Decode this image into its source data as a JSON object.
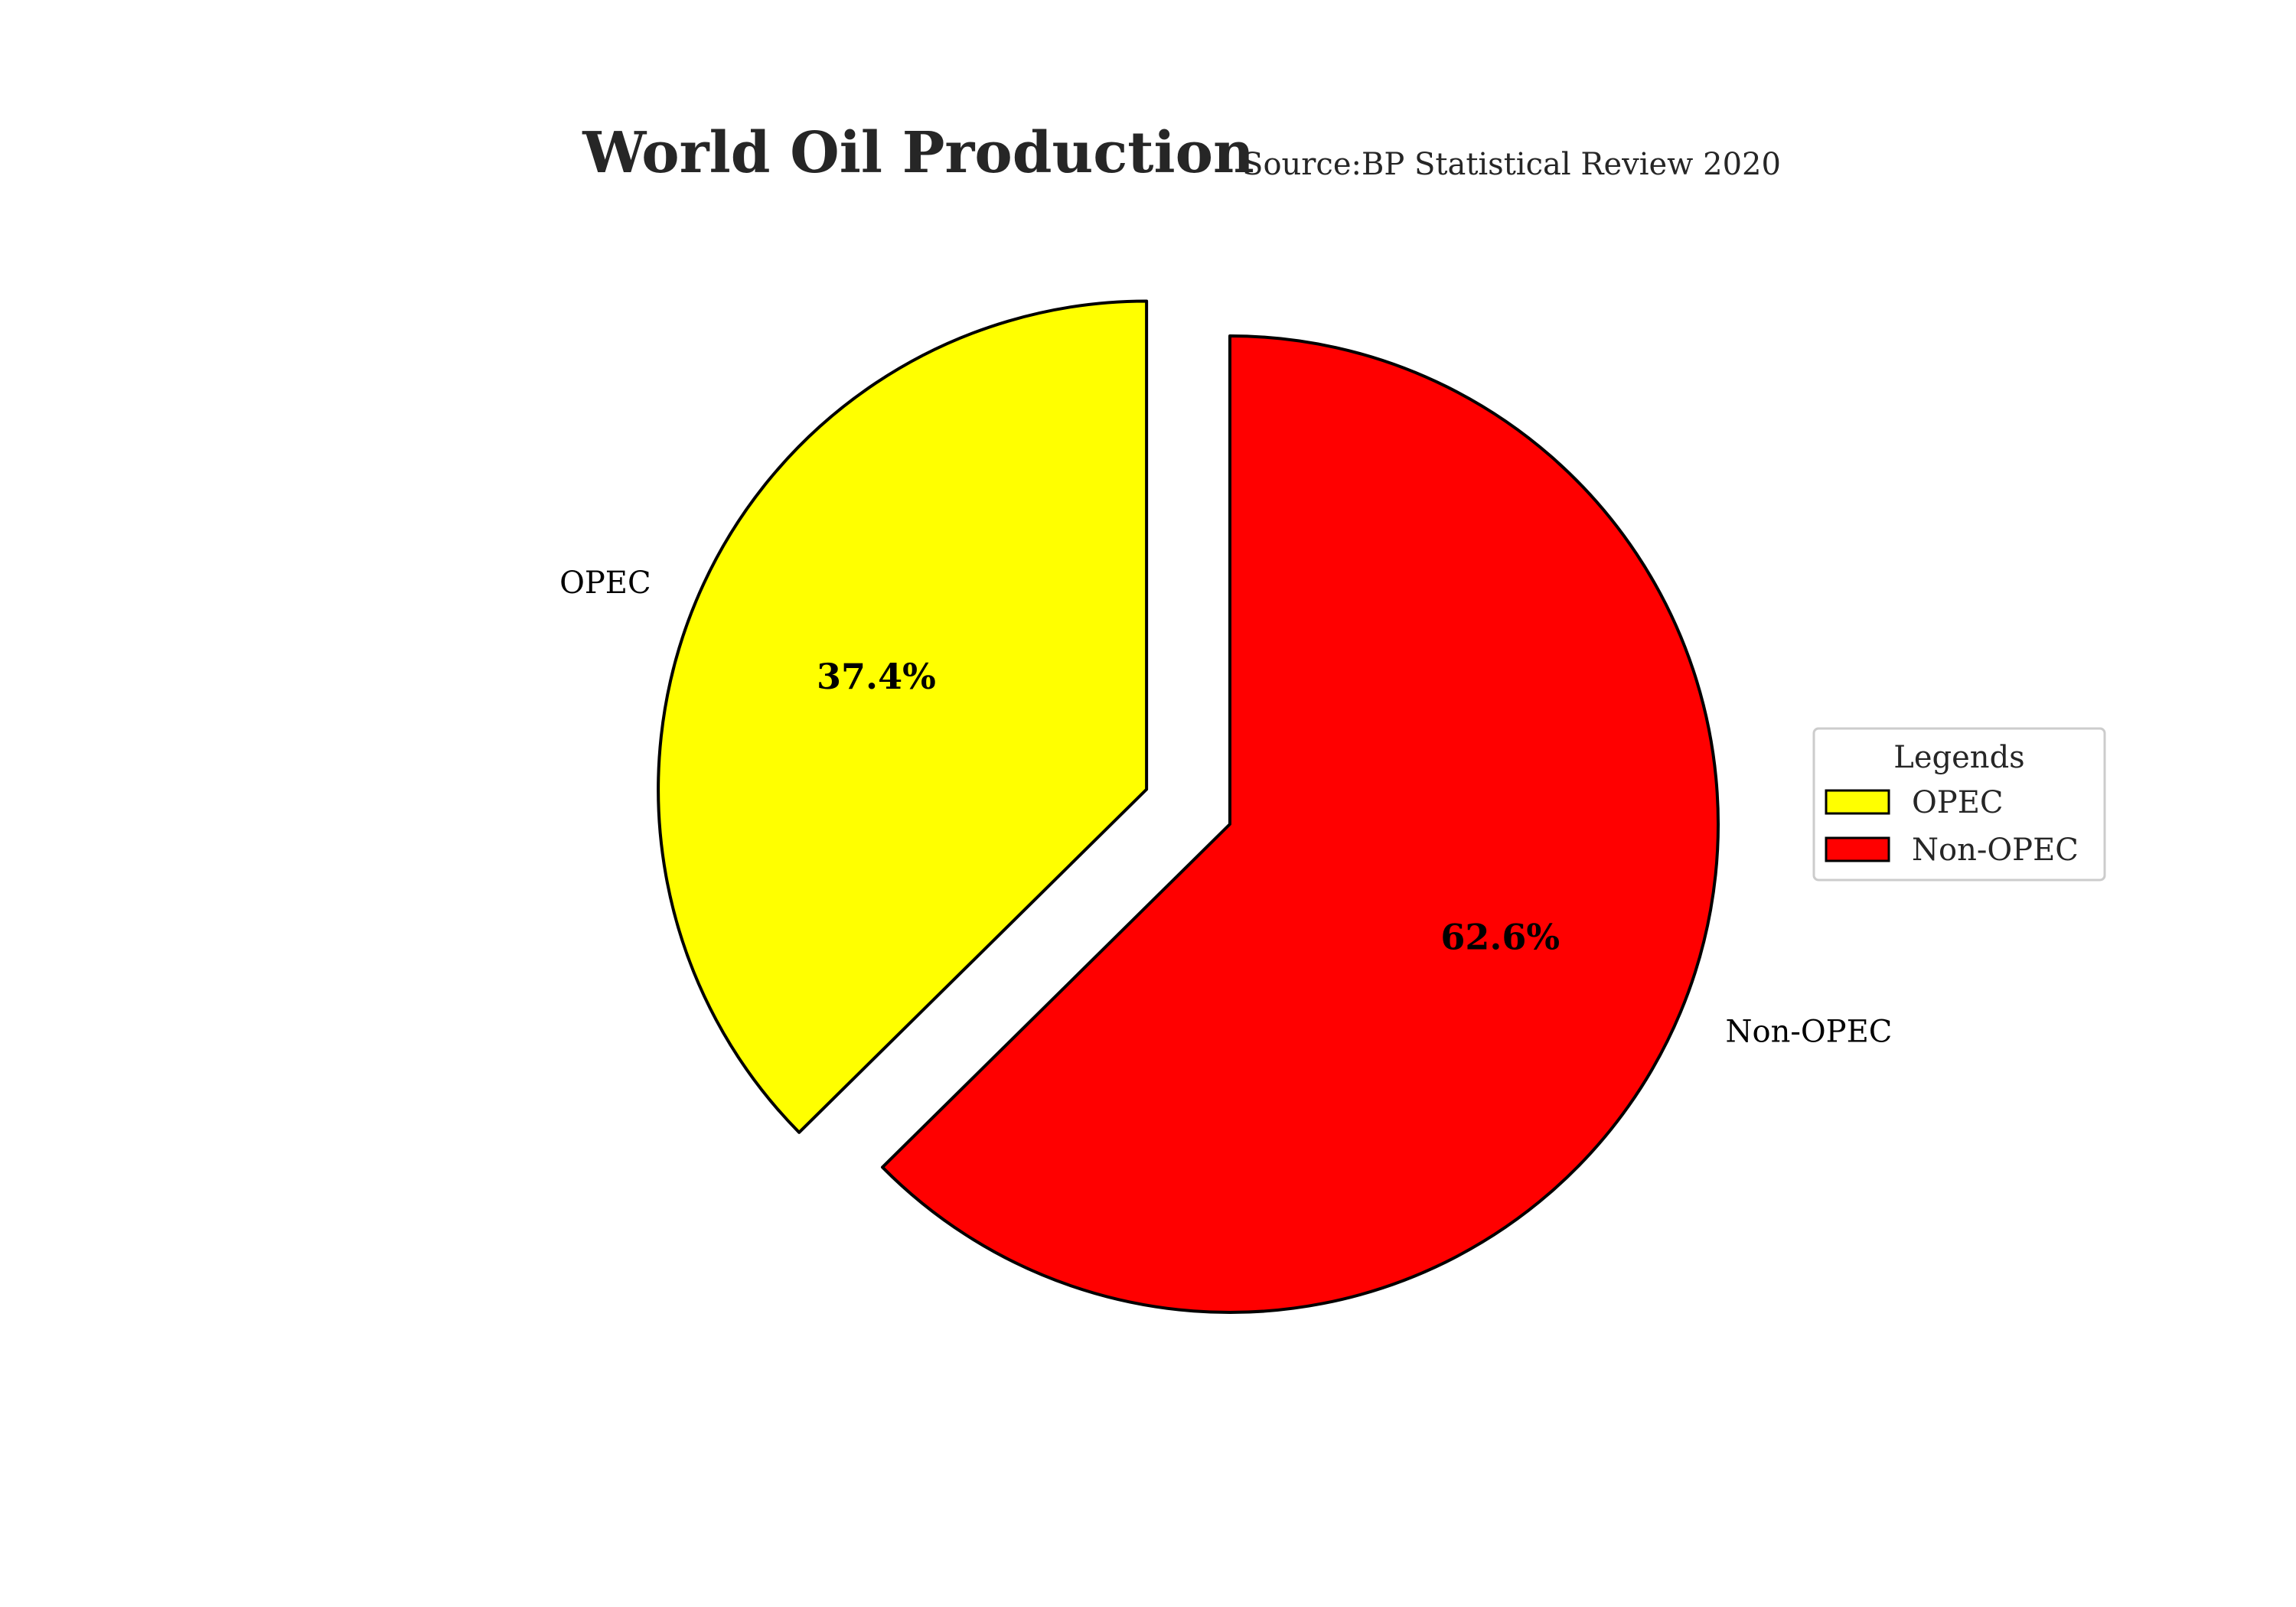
{
  "chart_data": {
    "type": "pie",
    "title": "World Oil Production",
    "subtitle": "Source:BP Statistical Review 2020",
    "slices": [
      {
        "label": "OPEC",
        "value": 37.4,
        "pct_label": "37.4%",
        "color": "#ffff00",
        "exploded": true
      },
      {
        "label": "Non-OPEC",
        "value": 62.6,
        "pct_label": "62.6%",
        "color": "#ff0000",
        "exploded": false
      }
    ],
    "legend": {
      "title": "Legends",
      "placement": "right",
      "entries": [
        "OPEC",
        "Non-OPEC"
      ]
    },
    "edge_color": "#000000"
  }
}
